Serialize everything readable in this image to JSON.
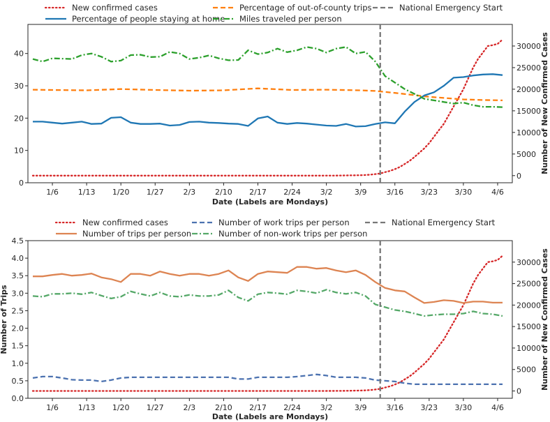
{
  "chart_data": [
    {
      "type": "line",
      "xlabel": "Date (Labels are Mondays)",
      "ylabel_left": "",
      "ylabel_right": "Number of New Confirmed Cases",
      "x_tick_labels": [
        "1/6",
        "1/13",
        "1/20",
        "1/27",
        "2/3",
        "2/10",
        "2/17",
        "2/24",
        "3/2",
        "3/9",
        "3/16",
        "3/23",
        "3/30",
        "4/6"
      ],
      "x_tick_days": [
        0,
        7,
        14,
        21,
        28,
        35,
        42,
        49,
        56,
        63,
        70,
        77,
        84,
        91
      ],
      "xlim": [
        -5,
        94
      ],
      "ylim_left": [
        0,
        49
      ],
      "yticks_left": [
        0,
        10,
        20,
        30,
        40
      ],
      "ylim_right": [
        -1650,
        35000
      ],
      "yticks_right": [
        0,
        5000,
        10000,
        15000,
        20000,
        25000,
        30000
      ],
      "vline": {
        "name": "National Emergency Start",
        "day": 67
      },
      "legend": [
        "New confirmed cases",
        "Percentage of out-of-county trips",
        "National Emergency Start",
        "Percentage of people staying at home",
        "Miles traveled per person"
      ],
      "series": [
        {
          "name": "New confirmed cases",
          "axis": "right",
          "color": "#d62728",
          "style": "dotted",
          "x": [
            -4,
            0,
            10,
            20,
            30,
            40,
            50,
            55,
            58,
            60,
            62,
            63,
            64,
            65,
            66,
            67,
            68,
            69,
            70,
            71,
            72,
            73,
            74,
            75,
            76,
            77,
            78,
            79,
            80,
            81,
            82,
            83,
            84,
            85,
            86,
            87,
            88,
            89,
            90,
            91,
            92
          ],
          "values": [
            0,
            0,
            0,
            0,
            0,
            0,
            0,
            0,
            20,
            40,
            80,
            100,
            150,
            220,
            350,
            500,
            800,
            1100,
            1500,
            2000,
            2700,
            3400,
            4300,
            5300,
            6300,
            7500,
            9000,
            10500,
            12000,
            14000,
            16000,
            18000,
            20000,
            22500,
            25000,
            27000,
            28500,
            30000,
            30200,
            30500,
            31500
          ]
        },
        {
          "name": "Percentage of out-of-county trips",
          "axis": "left",
          "color": "#ff7f0e",
          "style": "dashed",
          "x": [
            -4,
            0,
            7,
            14,
            21,
            28,
            35,
            42,
            49,
            56,
            63,
            66,
            70,
            77,
            84,
            88,
            92
          ],
          "values": [
            28.8,
            28.7,
            28.6,
            29.0,
            28.7,
            28.5,
            28.6,
            29.2,
            28.7,
            28.8,
            28.6,
            28.4,
            27.8,
            26.6,
            25.8,
            25.6,
            25.5
          ]
        },
        {
          "name": "Percentage of people staying at home",
          "axis": "left",
          "color": "#1f77b4",
          "style": "solid",
          "x": [
            -4,
            -2,
            0,
            2,
            4,
            6,
            8,
            10,
            12,
            14,
            16,
            18,
            20,
            22,
            24,
            26,
            28,
            30,
            32,
            34,
            36,
            38,
            40,
            42,
            44,
            46,
            48,
            50,
            52,
            54,
            56,
            58,
            60,
            62,
            64,
            66,
            68,
            70,
            72,
            74,
            76,
            78,
            80,
            82,
            84,
            86,
            88,
            90,
            92
          ],
          "values": [
            18.9,
            18.9,
            18.6,
            18.3,
            18.6,
            18.9,
            18.2,
            18.3,
            20.1,
            20.3,
            18.6,
            18.2,
            18.2,
            18.3,
            17.7,
            17.9,
            18.8,
            18.9,
            18.6,
            18.5,
            18.3,
            18.2,
            17.6,
            19.9,
            20.5,
            18.6,
            18.2,
            18.5,
            18.3,
            18.0,
            17.7,
            17.6,
            18.2,
            17.4,
            17.5,
            18.2,
            18.7,
            18.4,
            22.0,
            25.0,
            27.0,
            28.0,
            30.0,
            32.5,
            32.7,
            33.2,
            33.5,
            33.6,
            33.3
          ]
        },
        {
          "name": "Miles traveled per person",
          "axis": "left",
          "color": "#2ca02c",
          "style": "dashdot",
          "x": [
            -4,
            -2,
            0,
            2,
            4,
            6,
            8,
            10,
            12,
            14,
            16,
            18,
            20,
            22,
            24,
            26,
            28,
            30,
            32,
            34,
            36,
            38,
            40,
            42,
            44,
            46,
            48,
            50,
            52,
            54,
            56,
            58,
            60,
            62,
            64,
            66,
            68,
            70,
            72,
            74,
            76,
            78,
            80,
            82,
            84,
            86,
            88,
            90,
            92
          ],
          "values": [
            38.3,
            37.5,
            38.5,
            38.4,
            38.3,
            39.5,
            40.0,
            39.0,
            37.5,
            37.8,
            39.5,
            39.6,
            38.9,
            39.0,
            40.5,
            40.0,
            38.3,
            38.7,
            39.4,
            38.5,
            37.9,
            38.0,
            41.0,
            39.8,
            40.3,
            41.5,
            40.4,
            41.0,
            42.0,
            41.5,
            40.3,
            41.5,
            42.0,
            40.0,
            40.5,
            37.5,
            33.0,
            31.0,
            29.0,
            27.5,
            26.0,
            25.5,
            25.0,
            24.5,
            24.8,
            24.0,
            23.5,
            23.5,
            23.4
          ]
        }
      ]
    },
    {
      "type": "line",
      "xlabel": "Date (Labels are Mondays)",
      "ylabel_left": "Number of Trips",
      "ylabel_right": "Number of New Confirmed Cases",
      "x_tick_labels": [
        "1/6",
        "1/13",
        "1/20",
        "1/27",
        "2/3",
        "2/10",
        "2/17",
        "2/24",
        "3/2",
        "3/9",
        "3/16",
        "3/23",
        "3/30",
        "4/6"
      ],
      "x_tick_days": [
        0,
        7,
        14,
        21,
        28,
        35,
        42,
        49,
        56,
        63,
        70,
        77,
        84,
        91
      ],
      "xlim": [
        -5,
        94
      ],
      "ylim_left": [
        0,
        4.5
      ],
      "yticks_left": [
        0.0,
        0.5,
        1.0,
        1.5,
        2.0,
        2.5,
        3.0,
        3.5,
        4.0,
        4.5
      ],
      "ylim_right": [
        -1700,
        35000
      ],
      "yticks_right": [
        0,
        5000,
        10000,
        15000,
        20000,
        25000,
        30000
      ],
      "vline": {
        "name": "National Emergency Start",
        "day": 67
      },
      "legend": [
        "New confirmed cases",
        "Number of trips per person",
        "Number of work trips per person",
        "Number of non-work trips per person",
        "National Emergency Start"
      ],
      "series": [
        {
          "name": "New confirmed cases",
          "axis": "right",
          "color": "#d62728",
          "style": "dotted",
          "x": [
            -4,
            0,
            10,
            20,
            30,
            40,
            50,
            55,
            58,
            60,
            62,
            63,
            64,
            65,
            66,
            67,
            68,
            69,
            70,
            71,
            72,
            73,
            74,
            75,
            76,
            77,
            78,
            79,
            80,
            81,
            82,
            83,
            84,
            85,
            86,
            87,
            88,
            89,
            90,
            91,
            92
          ],
          "values": [
            0,
            0,
            0,
            0,
            0,
            0,
            0,
            0,
            20,
            40,
            80,
            100,
            150,
            220,
            350,
            500,
            800,
            1100,
            1500,
            2000,
            2700,
            3400,
            4300,
            5300,
            6300,
            7500,
            9000,
            10500,
            12000,
            14000,
            16000,
            18000,
            20000,
            22500,
            25000,
            27000,
            28500,
            30000,
            30200,
            30500,
            31500
          ]
        },
        {
          "name": "Number of trips per person",
          "axis": "left",
          "color": "#dd8452",
          "style": "solid",
          "x": [
            -4,
            -2,
            0,
            2,
            4,
            6,
            8,
            10,
            12,
            14,
            16,
            18,
            20,
            22,
            24,
            26,
            28,
            30,
            32,
            34,
            36,
            38,
            40,
            42,
            44,
            46,
            48,
            50,
            52,
            54,
            56,
            58,
            60,
            62,
            64,
            66,
            68,
            70,
            72,
            74,
            76,
            78,
            80,
            82,
            84,
            86,
            88,
            90,
            92
          ],
          "values": [
            3.48,
            3.48,
            3.52,
            3.55,
            3.5,
            3.52,
            3.56,
            3.45,
            3.4,
            3.32,
            3.55,
            3.55,
            3.5,
            3.62,
            3.55,
            3.5,
            3.55,
            3.55,
            3.5,
            3.55,
            3.65,
            3.45,
            3.35,
            3.55,
            3.62,
            3.6,
            3.58,
            3.75,
            3.75,
            3.7,
            3.72,
            3.65,
            3.6,
            3.65,
            3.52,
            3.32,
            3.15,
            3.08,
            3.05,
            2.88,
            2.72,
            2.75,
            2.8,
            2.78,
            2.72,
            2.76,
            2.76,
            2.73,
            2.73
          ]
        },
        {
          "name": "Number of work trips per person",
          "axis": "left",
          "color": "#4c72b0",
          "style": "dashed",
          "x": [
            -4,
            -2,
            0,
            2,
            4,
            6,
            8,
            10,
            12,
            14,
            16,
            18,
            20,
            22,
            24,
            26,
            28,
            30,
            32,
            34,
            36,
            38,
            40,
            42,
            44,
            46,
            48,
            50,
            52,
            54,
            56,
            58,
            60,
            62,
            64,
            66,
            68,
            70,
            72,
            74,
            76,
            78,
            80,
            82,
            84,
            86,
            88,
            90,
            92
          ],
          "values": [
            0.58,
            0.62,
            0.62,
            0.58,
            0.53,
            0.52,
            0.52,
            0.48,
            0.52,
            0.58,
            0.6,
            0.6,
            0.6,
            0.6,
            0.6,
            0.6,
            0.6,
            0.6,
            0.6,
            0.6,
            0.6,
            0.55,
            0.55,
            0.6,
            0.6,
            0.6,
            0.6,
            0.62,
            0.65,
            0.68,
            0.65,
            0.6,
            0.6,
            0.6,
            0.58,
            0.52,
            0.5,
            0.48,
            0.43,
            0.4,
            0.4,
            0.4,
            0.4,
            0.4,
            0.4,
            0.4,
            0.4,
            0.4,
            0.4
          ]
        },
        {
          "name": "Number of non-work trips per person",
          "axis": "left",
          "color": "#55a868",
          "style": "dashdot",
          "x": [
            -4,
            -2,
            0,
            2,
            4,
            6,
            8,
            10,
            12,
            14,
            16,
            18,
            20,
            22,
            24,
            26,
            28,
            30,
            32,
            34,
            36,
            38,
            40,
            42,
            44,
            46,
            48,
            50,
            52,
            54,
            56,
            58,
            60,
            62,
            64,
            66,
            68,
            70,
            72,
            74,
            76,
            78,
            80,
            82,
            84,
            86,
            88,
            90,
            92
          ],
          "values": [
            2.92,
            2.9,
            2.98,
            2.98,
            3.0,
            2.97,
            3.02,
            2.93,
            2.85,
            2.9,
            3.05,
            2.98,
            2.92,
            3.02,
            2.92,
            2.9,
            2.95,
            2.92,
            2.92,
            2.95,
            3.08,
            2.88,
            2.78,
            2.97,
            3.02,
            3.0,
            2.97,
            3.08,
            3.05,
            3.0,
            3.1,
            3.02,
            2.98,
            3.02,
            2.92,
            2.68,
            2.6,
            2.52,
            2.48,
            2.42,
            2.35,
            2.38,
            2.4,
            2.4,
            2.42,
            2.48,
            2.42,
            2.4,
            2.35
          ]
        }
      ]
    }
  ]
}
